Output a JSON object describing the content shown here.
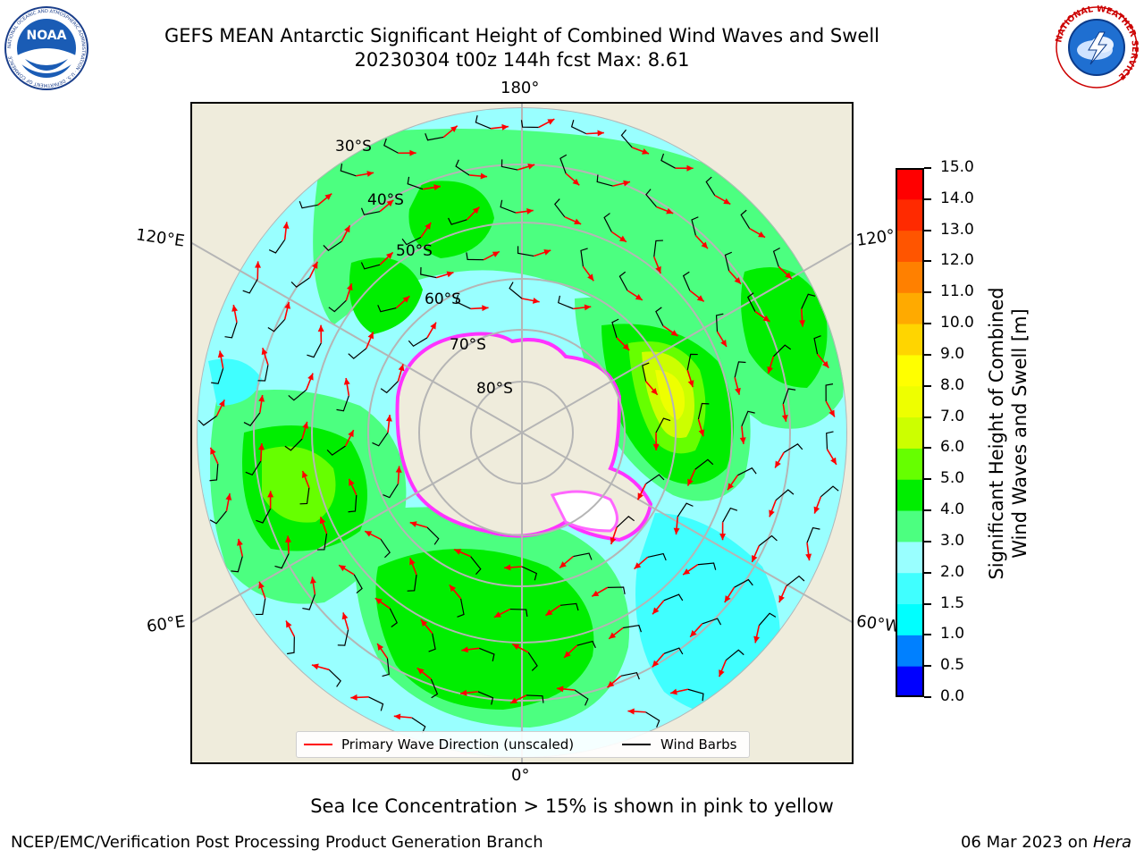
{
  "title": {
    "line1": "GEFS MEAN Antarctic Significant Height of Combined Wind Waves and Swell",
    "line2": "20230304 t00z 144h fcst   Max: 8.61"
  },
  "logos": {
    "noaa_text": "NOAA",
    "noaa_ring": "NATIONAL OCEANIC AND ATMOSPHERIC ADMINISTRATION · U.S. DEPARTMENT OF COMMERCE",
    "nws_ring": "NATIONAL WEATHER SERVICE"
  },
  "map": {
    "longitude_labels": {
      "top": "180°",
      "bottom": "0°",
      "left_upper": "120°E",
      "left_lower": "60°E",
      "right_upper": "120°",
      "right_lower": "60°W"
    },
    "latitude_labels": [
      "30°S",
      "40°S",
      "50°S",
      "60°S",
      "70°S",
      "80°S"
    ],
    "max_value": 8.61
  },
  "colorbar": {
    "label_line1": "Significant Height of Combined",
    "label_line2": "Wind Waves and Swell [m]",
    "ticks": [
      "0.0",
      "0.5",
      "1.0",
      "1.5",
      "2.0",
      "3.0",
      "4.0",
      "5.0",
      "6.0",
      "7.0",
      "8.0",
      "9.0",
      "10.0",
      "11.0",
      "12.0",
      "13.0",
      "14.0",
      "15.0"
    ],
    "colors": [
      "#0000ff",
      "#0080ff",
      "#00ffff",
      "#40ffff",
      "#99ffff",
      "#4cff80",
      "#00ee00",
      "#66ff00",
      "#ccff00",
      "#eeff00",
      "#ffff00",
      "#ffd500",
      "#ffaa00",
      "#ff8000",
      "#ff5500",
      "#ff2a00",
      "#ff0000"
    ]
  },
  "legend": {
    "primary_wave": "Primary Wave Direction (unscaled)",
    "wind_barbs": "Wind Barbs",
    "primary_wave_color": "#ff0000",
    "wind_barbs_color": "#000000"
  },
  "footnote": "Sea Ice Concentration > 15% is shown in pink to yellow",
  "credit": "NCEP/EMC/Verification Post Processing Product Generation Branch",
  "date": {
    "text": "06 Mar 2023 on ",
    "machine": "Hera"
  }
}
